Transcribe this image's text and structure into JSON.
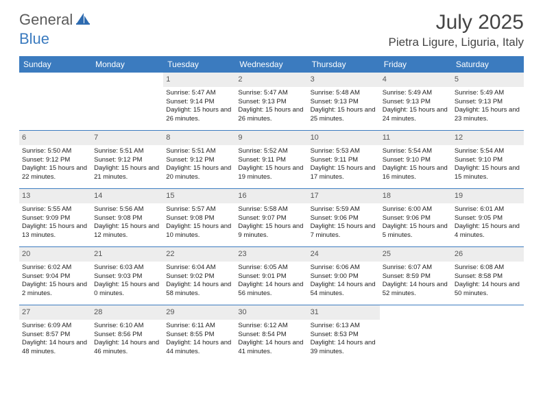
{
  "logo": {
    "part1": "General",
    "part2": "Blue"
  },
  "title": "July 2025",
  "location": "Pietra Ligure, Liguria, Italy",
  "colors": {
    "header_bg": "#3b7bbf",
    "daynum_bg": "#ededed",
    "text": "#222222",
    "title_text": "#444444"
  },
  "typography": {
    "title_fontsize": 30,
    "location_fontsize": 17,
    "header_fontsize": 12,
    "body_fontsize": 9.5
  },
  "day_headers": [
    "Sunday",
    "Monday",
    "Tuesday",
    "Wednesday",
    "Thursday",
    "Friday",
    "Saturday"
  ],
  "weeks": [
    [
      {
        "day": "",
        "sunrise": "",
        "sunset": "",
        "daylight": ""
      },
      {
        "day": "",
        "sunrise": "",
        "sunset": "",
        "daylight": ""
      },
      {
        "day": "1",
        "sunrise": "Sunrise: 5:47 AM",
        "sunset": "Sunset: 9:14 PM",
        "daylight": "Daylight: 15 hours and 26 minutes."
      },
      {
        "day": "2",
        "sunrise": "Sunrise: 5:47 AM",
        "sunset": "Sunset: 9:13 PM",
        "daylight": "Daylight: 15 hours and 26 minutes."
      },
      {
        "day": "3",
        "sunrise": "Sunrise: 5:48 AM",
        "sunset": "Sunset: 9:13 PM",
        "daylight": "Daylight: 15 hours and 25 minutes."
      },
      {
        "day": "4",
        "sunrise": "Sunrise: 5:49 AM",
        "sunset": "Sunset: 9:13 PM",
        "daylight": "Daylight: 15 hours and 24 minutes."
      },
      {
        "day": "5",
        "sunrise": "Sunrise: 5:49 AM",
        "sunset": "Sunset: 9:13 PM",
        "daylight": "Daylight: 15 hours and 23 minutes."
      }
    ],
    [
      {
        "day": "6",
        "sunrise": "Sunrise: 5:50 AM",
        "sunset": "Sunset: 9:12 PM",
        "daylight": "Daylight: 15 hours and 22 minutes."
      },
      {
        "day": "7",
        "sunrise": "Sunrise: 5:51 AM",
        "sunset": "Sunset: 9:12 PM",
        "daylight": "Daylight: 15 hours and 21 minutes."
      },
      {
        "day": "8",
        "sunrise": "Sunrise: 5:51 AM",
        "sunset": "Sunset: 9:12 PM",
        "daylight": "Daylight: 15 hours and 20 minutes."
      },
      {
        "day": "9",
        "sunrise": "Sunrise: 5:52 AM",
        "sunset": "Sunset: 9:11 PM",
        "daylight": "Daylight: 15 hours and 19 minutes."
      },
      {
        "day": "10",
        "sunrise": "Sunrise: 5:53 AM",
        "sunset": "Sunset: 9:11 PM",
        "daylight": "Daylight: 15 hours and 17 minutes."
      },
      {
        "day": "11",
        "sunrise": "Sunrise: 5:54 AM",
        "sunset": "Sunset: 9:10 PM",
        "daylight": "Daylight: 15 hours and 16 minutes."
      },
      {
        "day": "12",
        "sunrise": "Sunrise: 5:54 AM",
        "sunset": "Sunset: 9:10 PM",
        "daylight": "Daylight: 15 hours and 15 minutes."
      }
    ],
    [
      {
        "day": "13",
        "sunrise": "Sunrise: 5:55 AM",
        "sunset": "Sunset: 9:09 PM",
        "daylight": "Daylight: 15 hours and 13 minutes."
      },
      {
        "day": "14",
        "sunrise": "Sunrise: 5:56 AM",
        "sunset": "Sunset: 9:08 PM",
        "daylight": "Daylight: 15 hours and 12 minutes."
      },
      {
        "day": "15",
        "sunrise": "Sunrise: 5:57 AM",
        "sunset": "Sunset: 9:08 PM",
        "daylight": "Daylight: 15 hours and 10 minutes."
      },
      {
        "day": "16",
        "sunrise": "Sunrise: 5:58 AM",
        "sunset": "Sunset: 9:07 PM",
        "daylight": "Daylight: 15 hours and 9 minutes."
      },
      {
        "day": "17",
        "sunrise": "Sunrise: 5:59 AM",
        "sunset": "Sunset: 9:06 PM",
        "daylight": "Daylight: 15 hours and 7 minutes."
      },
      {
        "day": "18",
        "sunrise": "Sunrise: 6:00 AM",
        "sunset": "Sunset: 9:06 PM",
        "daylight": "Daylight: 15 hours and 5 minutes."
      },
      {
        "day": "19",
        "sunrise": "Sunrise: 6:01 AM",
        "sunset": "Sunset: 9:05 PM",
        "daylight": "Daylight: 15 hours and 4 minutes."
      }
    ],
    [
      {
        "day": "20",
        "sunrise": "Sunrise: 6:02 AM",
        "sunset": "Sunset: 9:04 PM",
        "daylight": "Daylight: 15 hours and 2 minutes."
      },
      {
        "day": "21",
        "sunrise": "Sunrise: 6:03 AM",
        "sunset": "Sunset: 9:03 PM",
        "daylight": "Daylight: 15 hours and 0 minutes."
      },
      {
        "day": "22",
        "sunrise": "Sunrise: 6:04 AM",
        "sunset": "Sunset: 9:02 PM",
        "daylight": "Daylight: 14 hours and 58 minutes."
      },
      {
        "day": "23",
        "sunrise": "Sunrise: 6:05 AM",
        "sunset": "Sunset: 9:01 PM",
        "daylight": "Daylight: 14 hours and 56 minutes."
      },
      {
        "day": "24",
        "sunrise": "Sunrise: 6:06 AM",
        "sunset": "Sunset: 9:00 PM",
        "daylight": "Daylight: 14 hours and 54 minutes."
      },
      {
        "day": "25",
        "sunrise": "Sunrise: 6:07 AM",
        "sunset": "Sunset: 8:59 PM",
        "daylight": "Daylight: 14 hours and 52 minutes."
      },
      {
        "day": "26",
        "sunrise": "Sunrise: 6:08 AM",
        "sunset": "Sunset: 8:58 PM",
        "daylight": "Daylight: 14 hours and 50 minutes."
      }
    ],
    [
      {
        "day": "27",
        "sunrise": "Sunrise: 6:09 AM",
        "sunset": "Sunset: 8:57 PM",
        "daylight": "Daylight: 14 hours and 48 minutes."
      },
      {
        "day": "28",
        "sunrise": "Sunrise: 6:10 AM",
        "sunset": "Sunset: 8:56 PM",
        "daylight": "Daylight: 14 hours and 46 minutes."
      },
      {
        "day": "29",
        "sunrise": "Sunrise: 6:11 AM",
        "sunset": "Sunset: 8:55 PM",
        "daylight": "Daylight: 14 hours and 44 minutes."
      },
      {
        "day": "30",
        "sunrise": "Sunrise: 6:12 AM",
        "sunset": "Sunset: 8:54 PM",
        "daylight": "Daylight: 14 hours and 41 minutes."
      },
      {
        "day": "31",
        "sunrise": "Sunrise: 6:13 AM",
        "sunset": "Sunset: 8:53 PM",
        "daylight": "Daylight: 14 hours and 39 minutes."
      },
      {
        "day": "",
        "sunrise": "",
        "sunset": "",
        "daylight": ""
      },
      {
        "day": "",
        "sunrise": "",
        "sunset": "",
        "daylight": ""
      }
    ]
  ]
}
